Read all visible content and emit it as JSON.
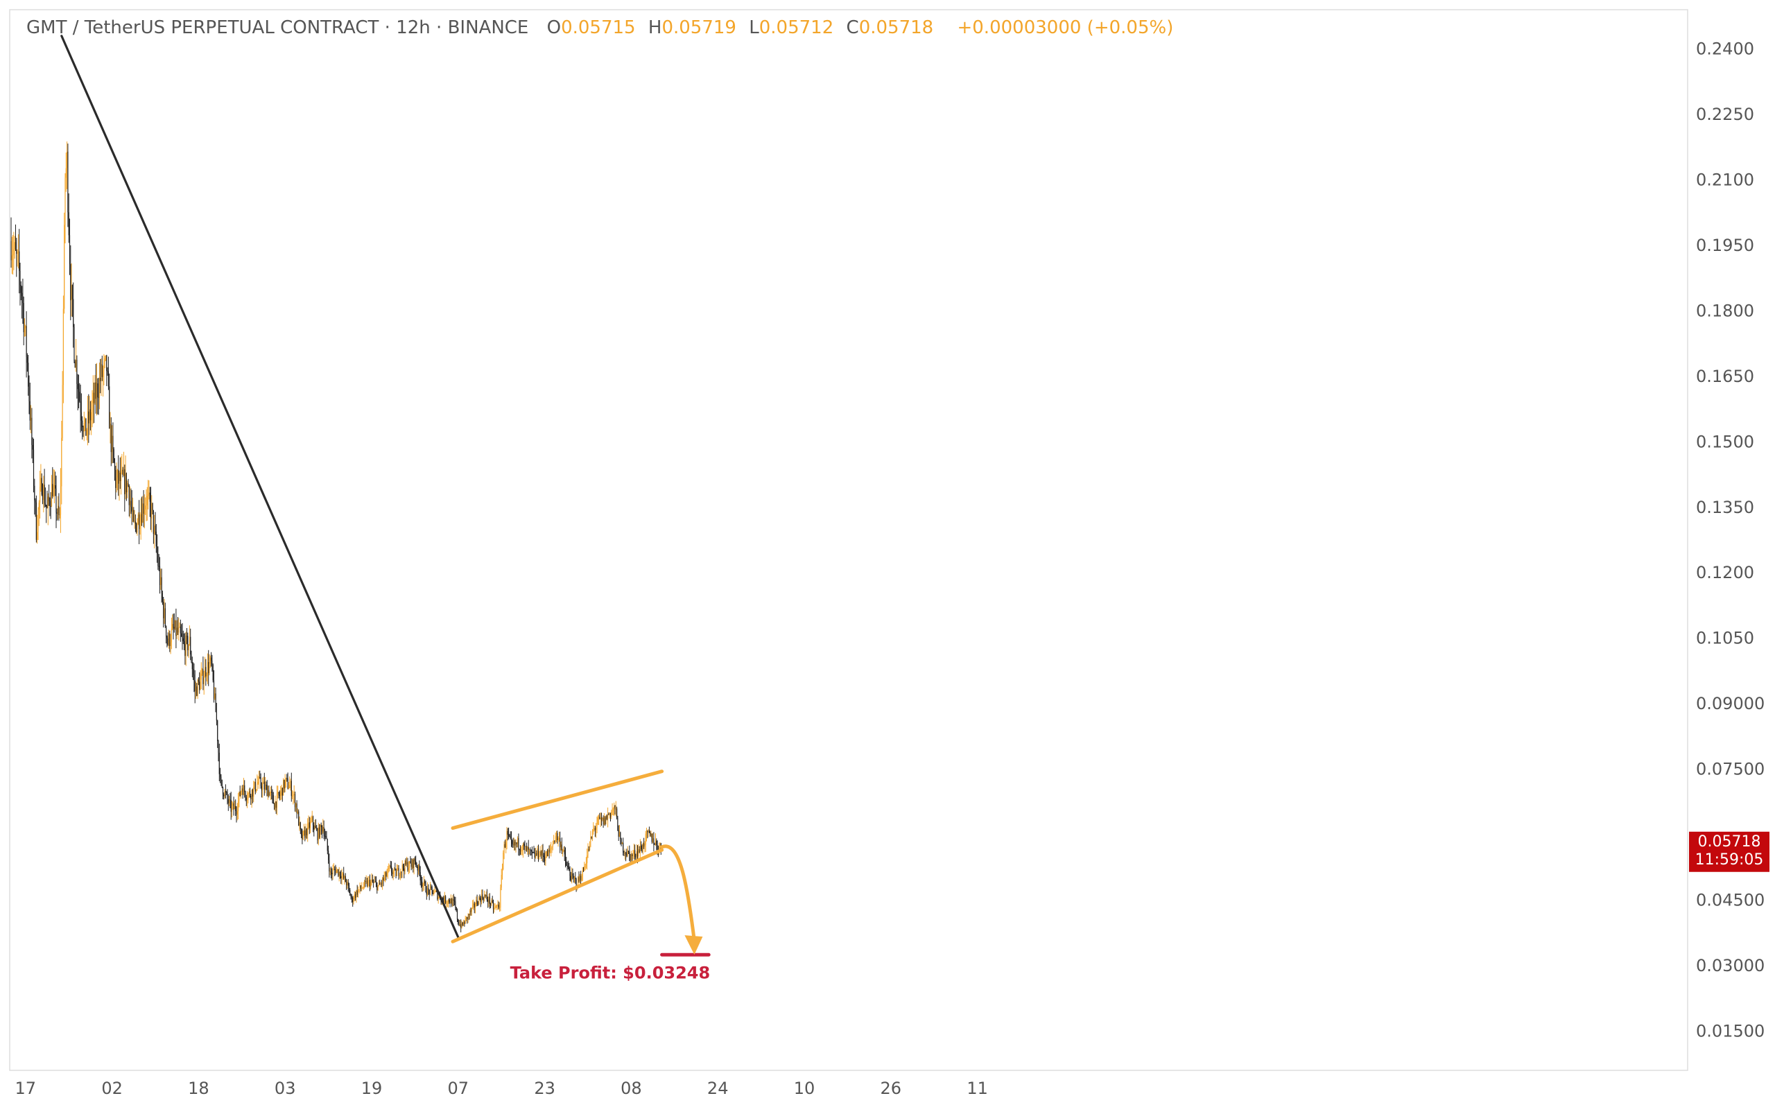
{
  "colors": {
    "up": "#f3a52a",
    "down": "#1d1d1d",
    "pattern": "#f5ad3c",
    "trend": "#2b2b2b",
    "target": "#c8203c",
    "price_tag_bg": "#c3080c",
    "text_gray": "#555555"
  },
  "header": {
    "symbol": "GMT / TetherUS PERPETUAL CONTRACT · 12h · BINANCE",
    "o_label": "O",
    "o_value": "0.05715",
    "h_label": "H",
    "h_value": "0.05719",
    "l_label": "L",
    "l_value": "0.05712",
    "c_label": "C",
    "c_value": "0.05718",
    "change": "+0.00003000 (+0.05%)"
  },
  "price_tag": {
    "price": "0.05718",
    "countdown": "11:59:05"
  },
  "annotation": {
    "take_profit_label": "Take Profit: $0.03248",
    "take_profit_value": 0.03248
  },
  "chart_data": {
    "type": "candlestick",
    "ylim": [
      0.006,
      0.249
    ],
    "xlim": [
      0,
      1170
    ],
    "y_ticks": [
      {
        "value": 0.24,
        "label": "0.2400"
      },
      {
        "value": 0.225,
        "label": "0.2250"
      },
      {
        "value": 0.21,
        "label": "0.2100"
      },
      {
        "value": 0.195,
        "label": "0.1950"
      },
      {
        "value": 0.18,
        "label": "0.1800"
      },
      {
        "value": 0.165,
        "label": "0.1650"
      },
      {
        "value": 0.15,
        "label": "0.1500"
      },
      {
        "value": 0.135,
        "label": "0.1350"
      },
      {
        "value": 0.12,
        "label": "0.1200"
      },
      {
        "value": 0.105,
        "label": "0.1050"
      },
      {
        "value": 0.09,
        "label": "0.09000"
      },
      {
        "value": 0.075,
        "label": "0.07500"
      },
      {
        "value": 0.045,
        "label": "0.04500"
      },
      {
        "value": 0.03,
        "label": "0.03000"
      },
      {
        "value": 0.015,
        "label": "0.01500"
      }
    ],
    "x_ticks": [
      {
        "x": 16,
        "label": "17"
      },
      {
        "x": 112,
        "label": "02"
      },
      {
        "x": 208,
        "label": "18"
      },
      {
        "x": 304,
        "label": "03"
      },
      {
        "x": 400,
        "label": "19"
      },
      {
        "x": 496,
        "label": "07"
      },
      {
        "x": 592,
        "label": "23"
      },
      {
        "x": 688,
        "label": "08"
      },
      {
        "x": 784,
        "label": "24"
      },
      {
        "x": 880,
        "label": "10"
      },
      {
        "x": 976,
        "label": "26"
      },
      {
        "x": 1072,
        "label": "11"
      }
    ],
    "anchors": [
      [
        0,
        0.196
      ],
      [
        8,
        0.19
      ],
      [
        12,
        0.184
      ],
      [
        18,
        0.168
      ],
      [
        22,
        0.153
      ],
      [
        28,
        0.13
      ],
      [
        34,
        0.141
      ],
      [
        40,
        0.134
      ],
      [
        46,
        0.14
      ],
      [
        52,
        0.133
      ],
      [
        54,
        0.132
      ],
      [
        56,
        0.15
      ],
      [
        60,
        0.211
      ],
      [
        62,
        0.214
      ],
      [
        66,
        0.186
      ],
      [
        70,
        0.172
      ],
      [
        76,
        0.16
      ],
      [
        82,
        0.152
      ],
      [
        88,
        0.156
      ],
      [
        94,
        0.161
      ],
      [
        100,
        0.165
      ],
      [
        106,
        0.167
      ],
      [
        110,
        0.152
      ],
      [
        116,
        0.141
      ],
      [
        124,
        0.141
      ],
      [
        130,
        0.14
      ],
      [
        136,
        0.13
      ],
      [
        142,
        0.133
      ],
      [
        150,
        0.137
      ],
      [
        156,
        0.134
      ],
      [
        162,
        0.124
      ],
      [
        168,
        0.113
      ],
      [
        174,
        0.104
      ],
      [
        180,
        0.107
      ],
      [
        186,
        0.106
      ],
      [
        192,
        0.103
      ],
      [
        198,
        0.104
      ],
      [
        204,
        0.093
      ],
      [
        210,
        0.095
      ],
      [
        216,
        0.098
      ],
      [
        222,
        0.099
      ],
      [
        228,
        0.086
      ],
      [
        232,
        0.072
      ],
      [
        238,
        0.069
      ],
      [
        244,
        0.066
      ],
      [
        250,
        0.066
      ],
      [
        256,
        0.071
      ],
      [
        262,
        0.069
      ],
      [
        268,
        0.07
      ],
      [
        274,
        0.072
      ],
      [
        280,
        0.071
      ],
      [
        286,
        0.07
      ],
      [
        292,
        0.067
      ],
      [
        298,
        0.069
      ],
      [
        304,
        0.072
      ],
      [
        310,
        0.071
      ],
      [
        316,
        0.067
      ],
      [
        322,
        0.059
      ],
      [
        328,
        0.061
      ],
      [
        334,
        0.063
      ],
      [
        340,
        0.06
      ],
      [
        346,
        0.062
      ],
      [
        350,
        0.058
      ],
      [
        354,
        0.051
      ],
      [
        360,
        0.052
      ],
      [
        366,
        0.051
      ],
      [
        372,
        0.049
      ],
      [
        378,
        0.045
      ],
      [
        384,
        0.047
      ],
      [
        390,
        0.048
      ],
      [
        396,
        0.049
      ],
      [
        402,
        0.049
      ],
      [
        408,
        0.048
      ],
      [
        414,
        0.05
      ],
      [
        420,
        0.052
      ],
      [
        426,
        0.051
      ],
      [
        432,
        0.052
      ],
      [
        438,
        0.053
      ],
      [
        444,
        0.053
      ],
      [
        448,
        0.054
      ],
      [
        452,
        0.052
      ],
      [
        456,
        0.049
      ],
      [
        462,
        0.047
      ],
      [
        468,
        0.047
      ],
      [
        474,
        0.046
      ],
      [
        480,
        0.045
      ],
      [
        486,
        0.045
      ],
      [
        492,
        0.044
      ],
      [
        496,
        0.04
      ],
      [
        500,
        0.039
      ],
      [
        506,
        0.041
      ],
      [
        512,
        0.043
      ],
      [
        518,
        0.045
      ],
      [
        524,
        0.046
      ],
      [
        530,
        0.045
      ],
      [
        536,
        0.043
      ],
      [
        542,
        0.044
      ],
      [
        546,
        0.056
      ],
      [
        550,
        0.06
      ],
      [
        556,
        0.057
      ],
      [
        562,
        0.058
      ],
      [
        568,
        0.057
      ],
      [
        574,
        0.056
      ],
      [
        580,
        0.055
      ],
      [
        586,
        0.056
      ],
      [
        592,
        0.055
      ],
      [
        598,
        0.056
      ],
      [
        604,
        0.06
      ],
      [
        610,
        0.058
      ],
      [
        616,
        0.053
      ],
      [
        622,
        0.05
      ],
      [
        628,
        0.049
      ],
      [
        634,
        0.051
      ],
      [
        640,
        0.056
      ],
      [
        646,
        0.061
      ],
      [
        652,
        0.063
      ],
      [
        658,
        0.063
      ],
      [
        664,
        0.065
      ],
      [
        670,
        0.066
      ],
      [
        676,
        0.058
      ],
      [
        682,
        0.056
      ],
      [
        688,
        0.055
      ],
      [
        694,
        0.056
      ],
      [
        700,
        0.057
      ],
      [
        706,
        0.06
      ],
      [
        712,
        0.059
      ],
      [
        718,
        0.057
      ],
      [
        722,
        0.05718
      ]
    ],
    "drawings": {
      "trend_line": {
        "start": [
          56,
          0.243
        ],
        "end": [
          496,
          0.0365
        ]
      },
      "wedge_upper": {
        "start": [
          490,
          0.0615
        ],
        "end": [
          722,
          0.0745
        ]
      },
      "wedge_lower": {
        "start": [
          490,
          0.0355
        ],
        "end": [
          722,
          0.0565
        ]
      },
      "forecast_arrow": {
        "start": [
          722,
          0.05718
        ],
        "end": [
          758,
          0.0325
        ]
      },
      "take_profit_line": {
        "start": [
          722,
          0.03248
        ],
        "end": [
          774,
          0.03248
        ]
      }
    }
  }
}
